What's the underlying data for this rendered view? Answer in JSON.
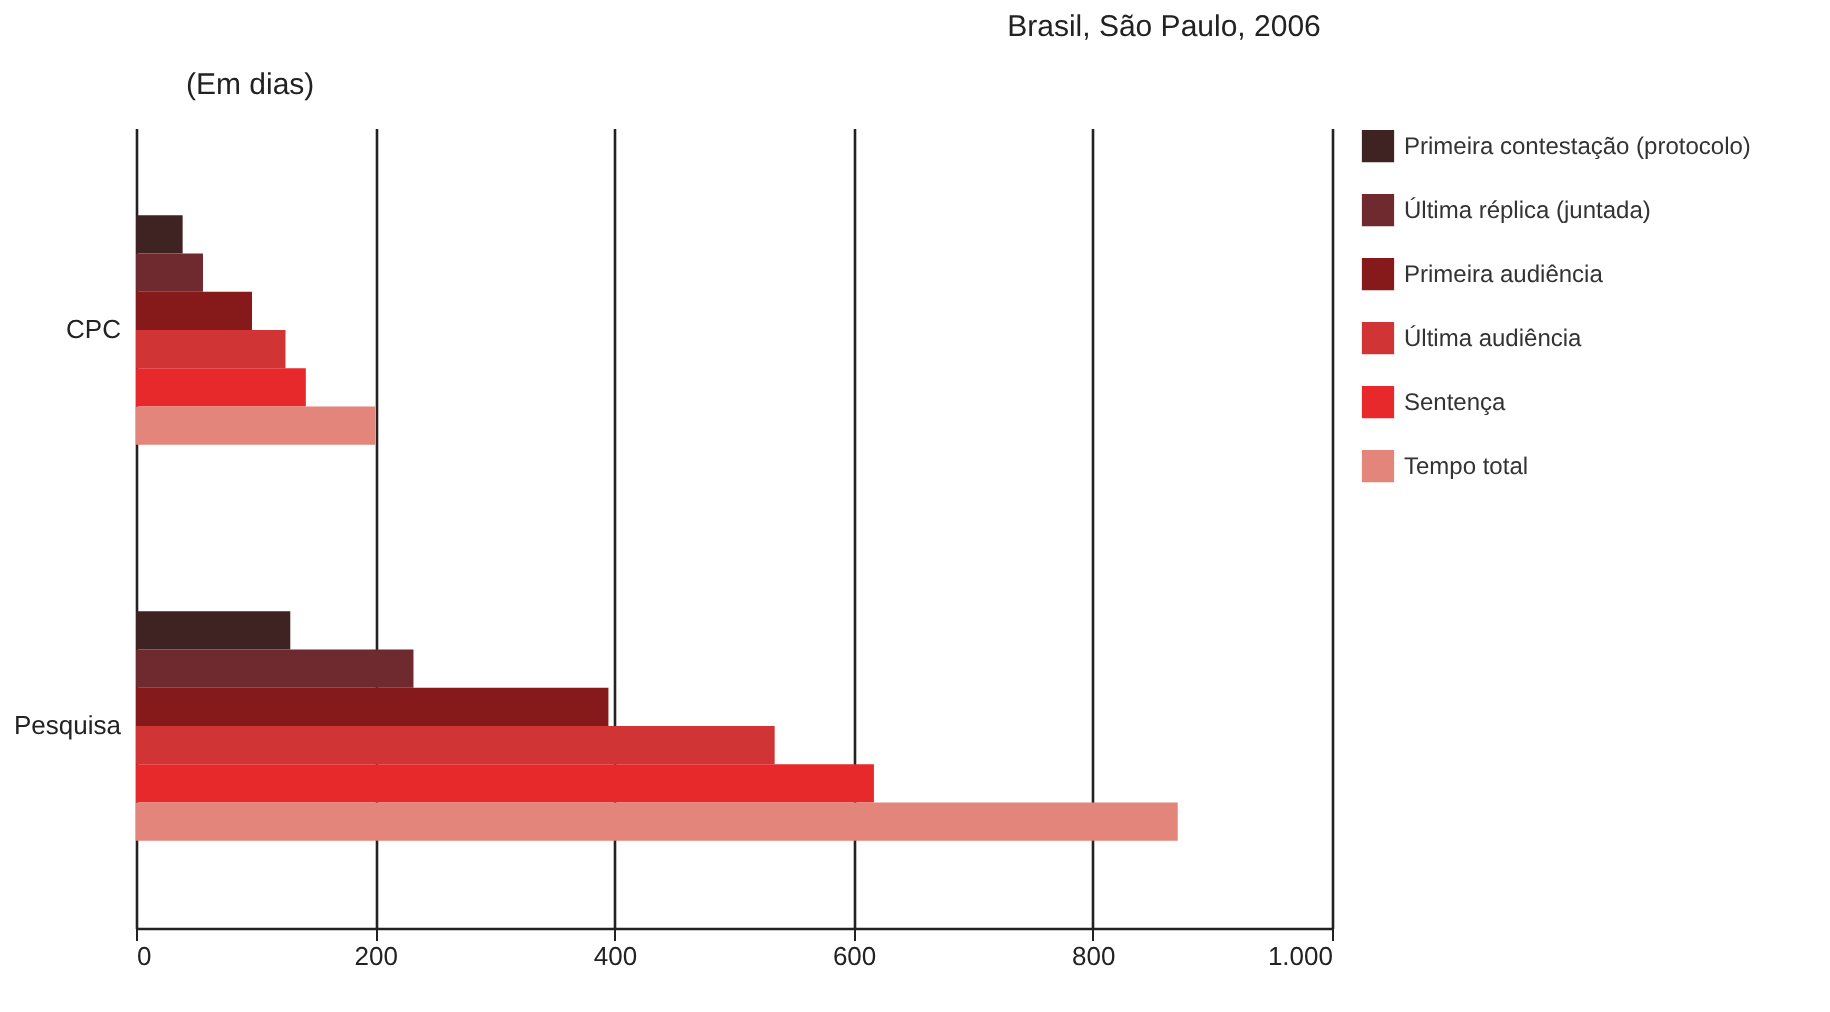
{
  "chart_data": {
    "type": "bar",
    "orientation": "horizontal",
    "title": "Brasil, São Paulo, 2006",
    "annotations": [
      "(Em dias)"
    ],
    "categories": [
      "CPC",
      "Pesquisa"
    ],
    "series": [
      {
        "name": "Primeira contestação (protocolo)",
        "color": "#3f2222",
        "values": [
          39,
          129
        ]
      },
      {
        "name": "Última réplica (juntada)",
        "color": "#6e2a2e",
        "values": [
          56,
          232
        ]
      },
      {
        "name": "Primeira audiência",
        "color": "#861a1a",
        "values": [
          97,
          395
        ]
      },
      {
        "name": "Última audiência",
        "color": "#d03435",
        "values": [
          125,
          534
        ]
      },
      {
        "name": "Sentença",
        "color": "#e8292b",
        "values": [
          142,
          617
        ]
      },
      {
        "name": "Tempo total",
        "color": "#e3857a",
        "values": [
          200,
          871
        ]
      }
    ],
    "xlim": [
      0,
      1000
    ],
    "xticks": [
      0,
      200,
      400,
      600,
      800,
      {
        "value": 1000,
        "label": "1.000"
      }
    ],
    "grid": "x",
    "legend": "right"
  }
}
